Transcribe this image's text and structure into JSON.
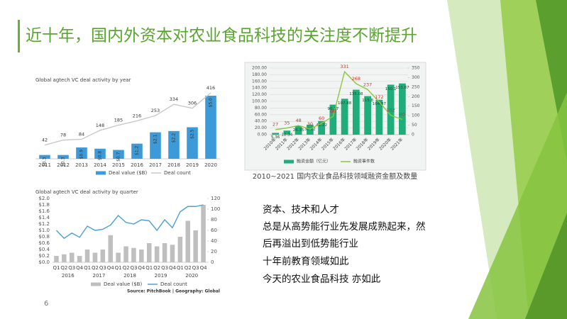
{
  "slide": {
    "title": "近十年，国内外资本对农业食品科技的关注度不断提升",
    "body": [
      "资本、技术和人才",
      "总是从高势能行业先发展成熟起来，然",
      "后再溢出到低势能行业",
      "十年前教育领域如此",
      "今天的农业食品科技 亦如此"
    ],
    "page_number": "6"
  },
  "chart_data": [
    {
      "type": "combo",
      "title": "Global agtech VC deal activity by year",
      "categories": [
        "2011",
        "2012",
        "2013",
        "2014",
        "2015",
        "2016",
        "2017",
        "2018",
        "2019",
        "2020"
      ],
      "series": [
        {
          "name": "Deal value ($B)",
          "type": "bar",
          "color": "#3d9ad8",
          "data_labels": true,
          "values": [
            0.3,
            0.3,
            0.9,
            0.8,
            0.7,
            1.2,
            2.1,
            2.2,
            2.5,
            5.0
          ],
          "value_labels": [
            "$0.3",
            "$0.3",
            "$0.9",
            "$0.8",
            "$0.7",
            "$1.2",
            "$2.1",
            "$2.2",
            "$2.5",
            "$5.0"
          ]
        },
        {
          "name": "Deal count",
          "type": "line",
          "color": "#c9c9c9",
          "data_labels": true,
          "values": [
            42,
            78,
            84,
            148,
            185,
            216,
            253,
            334,
            306,
            416
          ]
        }
      ]
    },
    {
      "type": "combo",
      "title": "Global agtech VC deal activity by quarter",
      "categories": [
        "Q1",
        "Q2",
        "Q3",
        "Q4",
        "Q1",
        "Q2",
        "Q3",
        "Q4",
        "Q1",
        "Q2",
        "Q3",
        "Q4",
        "Q1",
        "Q2",
        "Q3",
        "Q4",
        "Q1",
        "Q2",
        "Q3",
        "Q4"
      ],
      "x_groups": [
        "2016",
        "2017",
        "2018",
        "2019",
        "2020"
      ],
      "ylim": [
        0,
        2
      ],
      "yticks": [
        {
          "value": 0,
          "label": "$0.0"
        },
        {
          "value": 0.2,
          "label": "$0.2"
        },
        {
          "value": 0.4,
          "label": "$0.4"
        },
        {
          "value": 0.6,
          "label": "$0.6"
        },
        {
          "value": 0.8,
          "label": "$0.8"
        },
        {
          "value": 1.0,
          "label": "$1.0"
        },
        {
          "value": 1.2,
          "label": "$1.2"
        },
        {
          "value": 1.4,
          "label": "$1.4"
        },
        {
          "value": 1.6,
          "label": "$1.6"
        },
        {
          "value": 1.8,
          "label": "$1.8"
        },
        {
          "value": 2.0,
          "label": "$2.0"
        }
      ],
      "y2lim": [
        0,
        120
      ],
      "y2ticks": [
        0,
        20,
        40,
        60,
        80,
        100,
        120
      ],
      "series": [
        {
          "name": "Deal value ($B)",
          "type": "bar",
          "color": "#bfbfbf",
          "values": [
            0.2,
            0.25,
            0.3,
            0.2,
            0.4,
            0.3,
            0.4,
            0.85,
            0.3,
            0.5,
            0.45,
            0.4,
            0.6,
            0.5,
            0.6,
            0.55,
            0.8,
            1.3,
            1.0,
            1.8
          ]
        },
        {
          "name": "Deal count",
          "type": "line",
          "color": "#4a9fd8",
          "axis": "y2",
          "values": [
            60,
            45,
            55,
            47,
            68,
            60,
            62,
            70,
            88,
            75,
            72,
            80,
            78,
            60,
            80,
            65,
            95,
            105,
            105,
            108
          ]
        }
      ],
      "source": "Source: PitchBook | Geography: Global"
    },
    {
      "type": "combo",
      "title": "2010~2021 国内农业食品科技领域融资金额及数量",
      "categories": [
        "2010年",
        "2011年",
        "2012年",
        "2013年",
        "2014年",
        "2015年",
        "2016年",
        "2017年",
        "2018年",
        "2019年",
        "2020年",
        "2021年"
      ],
      "ylim": [
        0,
        200
      ],
      "yticks": [
        "0.00",
        "20.00",
        "40.00",
        "60.00",
        "80.00",
        "100.00",
        "120.00",
        "140.00",
        "160.00",
        "180.00",
        "200.00"
      ],
      "y2lim": [
        0,
        350
      ],
      "y2ticks": [
        0,
        50,
        100,
        150,
        200,
        250,
        300,
        350
      ],
      "grid": true,
      "series": [
        {
          "name": "融资金额（亿元）",
          "type": "bar",
          "color": "#1fae7b",
          "data_labels": true,
          "values": [
            5.36,
            12.34,
            26.35,
            30.12,
            41.22,
            90.17,
            107.88,
            135.08,
            115.8,
            104.87,
            150.1,
            153.87
          ]
        },
        {
          "name": "融资事件数",
          "type": "line",
          "color": "#8dc63f",
          "axis": "y2",
          "data_labels": true,
          "values": [
            27,
            35,
            48,
            30,
            60,
            96,
            331,
            268,
            237,
            172,
            102,
            80
          ]
        }
      ]
    }
  ]
}
